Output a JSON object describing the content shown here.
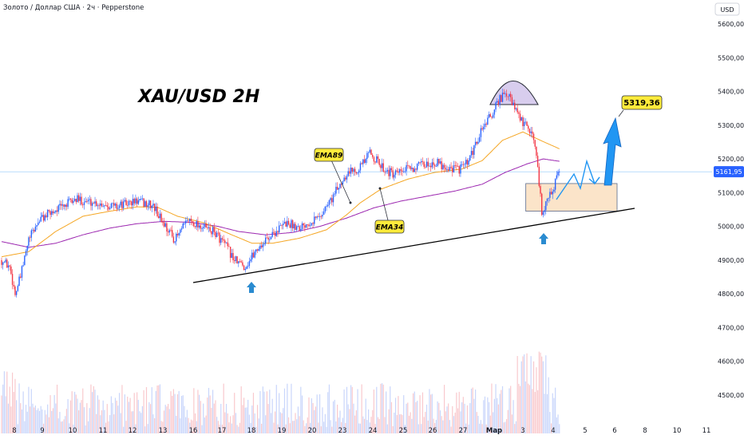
{
  "header": {
    "symbol_info": "Золото / Доллар США · 2ч · Pepperstone"
  },
  "currency_badge": "USD",
  "colors": {
    "up": "#2962ff",
    "down": "#f23645",
    "ema34": "#f5a623",
    "ema89": "#9c27b0",
    "trendline": "#000000",
    "arrow": "#2196f3",
    "price_line": "#90caf9",
    "price_tag_bg": "#2962ff",
    "box_fill": "#fbe4c9",
    "box_stroke": "#5a6b8c",
    "dome_fill": "#d8cdee",
    "callout_bg": "#ffeb3b"
  },
  "chart_data": {
    "type": "candlestick",
    "title": "XAU/USD 2H",
    "x_tick_labels": [
      "8",
      "9",
      "10",
      "11",
      "12",
      "13",
      "16",
      "17",
      "18",
      "19",
      "20",
      "23",
      "24",
      "25",
      "26",
      "27",
      "Мар",
      "3",
      "4",
      "5",
      "6",
      "8",
      "10",
      "11"
    ],
    "y_tick_labels": [
      "5600,00",
      "5500,00",
      "5400,00",
      "5300,00",
      "5200,00",
      "5100,00",
      "5000,00",
      "4900,00",
      "4800,00",
      "4700,00",
      "4600,00",
      "4500,00"
    ],
    "y_tick_values": [
      5600,
      5500,
      5400,
      5300,
      5200,
      5100,
      5000,
      4900,
      4800,
      4700,
      4600,
      4500
    ],
    "ylim": [
      4450,
      5640
    ],
    "price_anchors": [
      [
        0,
        4900
      ],
      [
        6,
        4880
      ],
      [
        10,
        4800
      ],
      [
        14,
        4850
      ],
      [
        20,
        4960
      ],
      [
        28,
        5020
      ],
      [
        40,
        5050
      ],
      [
        55,
        5080
      ],
      [
        70,
        5070
      ],
      [
        85,
        5060
      ],
      [
        100,
        5075
      ],
      [
        112,
        5060
      ],
      [
        118,
        5020
      ],
      [
        128,
        4960
      ],
      [
        138,
        5020
      ],
      [
        148,
        5000
      ],
      [
        158,
        4980
      ],
      [
        166,
        4940
      ],
      [
        172,
        4900
      ],
      [
        180,
        4880
      ],
      [
        188,
        4930
      ],
      [
        198,
        4970
      ],
      [
        210,
        5010
      ],
      [
        220,
        5000
      ],
      [
        235,
        5030
      ],
      [
        245,
        5090
      ],
      [
        255,
        5160
      ],
      [
        262,
        5170
      ],
      [
        268,
        5190
      ],
      [
        272,
        5220
      ],
      [
        280,
        5180
      ],
      [
        290,
        5150
      ],
      [
        300,
        5170
      ],
      [
        310,
        5180
      ],
      [
        320,
        5190
      ],
      [
        330,
        5175
      ],
      [
        338,
        5170
      ],
      [
        345,
        5190
      ],
      [
        350,
        5240
      ],
      [
        356,
        5300
      ],
      [
        362,
        5330
      ],
      [
        368,
        5380
      ],
      [
        374,
        5390
      ],
      [
        380,
        5340
      ],
      [
        386,
        5300
      ],
      [
        392,
        5280
      ],
      [
        396,
        5180
      ],
      [
        399,
        5040
      ],
      [
        402,
        5070
      ],
      [
        406,
        5100
      ],
      [
        410,
        5140
      ],
      [
        412,
        5163
      ]
    ],
    "ema34_anchors": [
      [
        0,
        4910
      ],
      [
        20,
        4925
      ],
      [
        40,
        4985
      ],
      [
        60,
        5030
      ],
      [
        80,
        5045
      ],
      [
        100,
        5058
      ],
      [
        115,
        5057
      ],
      [
        130,
        5030
      ],
      [
        150,
        5010
      ],
      [
        170,
        4975
      ],
      [
        185,
        4950
      ],
      [
        200,
        4950
      ],
      [
        220,
        4965
      ],
      [
        240,
        4990
      ],
      [
        255,
        5035
      ],
      [
        265,
        5070
      ],
      [
        280,
        5110
      ],
      [
        300,
        5140
      ],
      [
        320,
        5160
      ],
      [
        340,
        5170
      ],
      [
        355,
        5195
      ],
      [
        370,
        5255
      ],
      [
        385,
        5280
      ],
      [
        398,
        5255
      ],
      [
        412,
        5230
      ]
    ],
    "ema89_anchors": [
      [
        0,
        4955
      ],
      [
        20,
        4938
      ],
      [
        40,
        4950
      ],
      [
        60,
        4975
      ],
      [
        80,
        4995
      ],
      [
        100,
        5008
      ],
      [
        120,
        5015
      ],
      [
        140,
        5012
      ],
      [
        160,
        5000
      ],
      [
        175,
        4985
      ],
      [
        195,
        4975
      ],
      [
        215,
        4982
      ],
      [
        235,
        5000
      ],
      [
        255,
        5025
      ],
      [
        275,
        5055
      ],
      [
        295,
        5075
      ],
      [
        315,
        5090
      ],
      [
        335,
        5105
      ],
      [
        355,
        5125
      ],
      [
        372,
        5160
      ],
      [
        388,
        5185
      ],
      [
        400,
        5200
      ],
      [
        412,
        5193
      ]
    ],
    "current_price": {
      "value": 5161.95,
      "label": "5161,95"
    },
    "annotations": {
      "title": "XAU/USD 2H",
      "ema34_label": "EMA34",
      "ema89_label": "EMA89",
      "target_label": "5319,36",
      "target_value": 5319.36
    },
    "support_trendline": {
      "start": [
        118,
        4870
      ],
      "end": [
        392,
        5049
      ]
    },
    "demand_zone": {
      "x_from": 386,
      "x_to": 412,
      "y_from": 5045,
      "y_to": 5127
    },
    "projection_path": [
      [
        412,
        5060
      ],
      [
        420,
        5110
      ],
      [
        426,
        5060
      ],
      [
        432,
        5115
      ],
      [
        435,
        5075
      ],
      [
        444,
        5300
      ]
    ],
    "up_arrows_at": [
      [
        180,
        4830
      ],
      [
        398,
        4980
      ]
    ],
    "volume_max": 1.0
  }
}
